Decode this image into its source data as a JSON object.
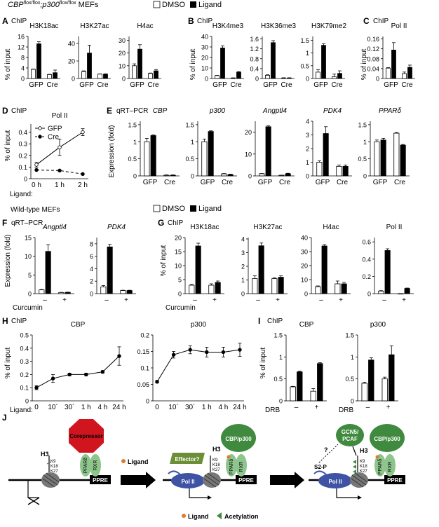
{
  "header": {
    "top_line_base": "CBP",
    "top_line_sup1": "flox/flox",
    "top_line_mid": ";p300",
    "top_line_sup2": "flox/flox",
    "top_line_end": " MEFs",
    "mid_line": "Wild-type MEFs"
  },
  "legend": {
    "dmso": "DMSO",
    "ligand": "Ligand"
  },
  "colors": {
    "dmso_fill": "#ffffff",
    "ligand_fill": "#000000",
    "red": "#d0151f",
    "green": "#3f8a3f",
    "light_green": "#8dc58d",
    "blue": "#3f53a5",
    "olive": "#6b8e37",
    "orange": "#e07b2e"
  },
  "panel_labels": {
    "A": "A",
    "B": "B",
    "C": "C",
    "D": "D",
    "E": "E",
    "F": "F",
    "G": "G",
    "H": "H",
    "I": "I",
    "J": "J"
  },
  "method_labels": {
    "chip": "ChIP",
    "qrt": "qRT–PCR"
  },
  "axis_labels": {
    "pct_input": "% of input",
    "expr": "Expression (fold)",
    "ligand": "Ligand:",
    "curcumin": "Curcumin",
    "drb": "DRB"
  },
  "tick_labels": {
    "gfp": "GFP",
    "cre": "Cre",
    "minus": "–",
    "plus": "+"
  },
  "chart_data": [
    {
      "id": "A1",
      "type": "bar",
      "title": "H3K18ac",
      "categories": [
        "GFP",
        "Cre"
      ],
      "series": [
        {
          "name": "DMSO",
          "values": [
            3.5,
            1.5
          ],
          "err": [
            0.1,
            0.1
          ]
        },
        {
          "name": "Ligand",
          "values": [
            13.2,
            2.2
          ],
          "err": [
            0.8,
            1.0
          ]
        }
      ],
      "yticks": [
        0,
        4,
        8,
        12,
        16
      ],
      "ylim": [
        0,
        16
      ]
    },
    {
      "id": "A2",
      "type": "bar",
      "title": "H3K27ac",
      "categories": [
        "GFP",
        "Cre"
      ],
      "series": [
        {
          "name": "DMSO",
          "values": [
            8,
            5
          ],
          "err": [
            0.7,
            0.2
          ]
        },
        {
          "name": "Ligand",
          "values": [
            29,
            5
          ],
          "err": [
            9,
            0.3
          ]
        }
      ],
      "yticks": [
        0,
        20,
        40
      ],
      "ylim": [
        0,
        48
      ]
    },
    {
      "id": "A3",
      "type": "bar",
      "title": "H4ac",
      "categories": [
        "GFP",
        "Cre"
      ],
      "series": [
        {
          "name": "DMSO",
          "values": [
            10,
            4
          ],
          "err": [
            1.5,
            0.3
          ]
        },
        {
          "name": "Ligand",
          "values": [
            23,
            6
          ],
          "err": [
            3.5,
            1
          ]
        }
      ],
      "yticks": [
        0,
        10,
        20,
        30
      ],
      "ylim": [
        0,
        33
      ]
    },
    {
      "id": "B1",
      "type": "bar",
      "title": "H3K4me3",
      "categories": [
        "GFP",
        "Cre"
      ],
      "series": [
        {
          "name": "DMSO",
          "values": [
            2.8,
            0.5
          ],
          "err": [
            0.2,
            0.1
          ]
        },
        {
          "name": "Ligand",
          "values": [
            29,
            6
          ],
          "err": [
            2,
            0.5
          ]
        }
      ],
      "yticks": [
        0,
        10,
        20,
        30,
        40
      ],
      "ylim": [
        0,
        40
      ]
    },
    {
      "id": "B2",
      "type": "bar",
      "title": "H3K36me3",
      "categories": [
        "GFP",
        "Cre"
      ],
      "series": [
        {
          "name": "DMSO",
          "values": [
            0.13,
            0.02
          ],
          "err": [
            0.02,
            0.01
          ]
        },
        {
          "name": "Ligand",
          "values": [
            1.45,
            0.02
          ],
          "err": [
            0.08,
            0.01
          ]
        }
      ],
      "yticks": [
        0,
        0.4,
        0.8,
        1.2,
        1.6
      ],
      "ylim": [
        0,
        1.7
      ]
    },
    {
      "id": "B3",
      "type": "bar",
      "title": "H3K79me2",
      "categories": [
        "GFP",
        "Cre"
      ],
      "series": [
        {
          "name": "DMSO",
          "values": [
            0.25,
            0.07
          ],
          "err": [
            0.1,
            0.1
          ]
        },
        {
          "name": "Ligand",
          "values": [
            1.3,
            0.2
          ],
          "err": [
            0.06,
            0.1
          ]
        }
      ],
      "yticks": [
        0,
        0.5,
        1,
        1.5
      ],
      "ylim": [
        0,
        1.65
      ]
    },
    {
      "id": "C",
      "type": "bar",
      "title": "Pol II",
      "categories": [
        "GFP",
        "Cre"
      ],
      "series": [
        {
          "name": "DMSO",
          "values": [
            0.042,
            0.02
          ],
          "err": [
            0.002,
            0.006
          ]
        },
        {
          "name": "Ligand",
          "values": [
            0.115,
            0.045
          ],
          "err": [
            0.03,
            0.009
          ]
        }
      ],
      "yticks": [
        0,
        0.04,
        0.08,
        0.12,
        0.16
      ],
      "ylim": [
        0,
        0.17
      ]
    },
    {
      "id": "D",
      "type": "line",
      "title": "Pol II",
      "x": [
        "0 h",
        "1 h",
        "2 h"
      ],
      "series": [
        {
          "name": "GFP",
          "values": [
            0.12,
            0.27,
            0.4
          ],
          "err": [
            0.02,
            0.07,
            0.03
          ]
        },
        {
          "name": "Cre",
          "values": [
            0.075,
            0.07,
            0.04
          ],
          "err": [
            0.005,
            0.005,
            0.005
          ]
        }
      ],
      "yticks": [
        0,
        0.1,
        0.2,
        0.3,
        0.4
      ],
      "ylim": [
        0,
        0.47
      ]
    },
    {
      "id": "E1",
      "type": "bar",
      "title": "CBP",
      "categories": [
        "GFP",
        "Cre"
      ],
      "series": [
        {
          "name": "DMSO",
          "values": [
            1.0,
            0.02
          ],
          "err": [
            0.1,
            0.01
          ]
        },
        {
          "name": "Ligand",
          "values": [
            1.18,
            0.02
          ],
          "err": [
            0.02,
            0.01
          ]
        }
      ],
      "yticks": [
        0,
        0.5,
        1,
        1.5
      ],
      "ylim": [
        0,
        1.6
      ]
    },
    {
      "id": "E2",
      "type": "bar",
      "title": "p300",
      "categories": [
        "GFP",
        "Cre"
      ],
      "series": [
        {
          "name": "DMSO",
          "values": [
            1.0,
            0.06
          ],
          "err": [
            0.08,
            0.01
          ]
        },
        {
          "name": "Ligand",
          "values": [
            1.3,
            0.04
          ],
          "err": [
            0.02,
            0.01
          ]
        }
      ],
      "yticks": [
        0,
        0.5,
        1,
        1.5
      ],
      "ylim": [
        0,
        1.6
      ]
    },
    {
      "id": "E3",
      "type": "bar",
      "title": "Angptl4",
      "categories": [
        "GFP",
        "Cre"
      ],
      "series": [
        {
          "name": "DMSO",
          "values": [
            1,
            0.3
          ],
          "err": [
            0.1,
            0.05
          ]
        },
        {
          "name": "Ligand",
          "values": [
            22.5,
            1
          ],
          "err": [
            0.4,
            0.2
          ]
        }
      ],
      "yticks": [
        0,
        10,
        20
      ],
      "ylim": [
        0,
        25
      ]
    },
    {
      "id": "E4",
      "type": "bar",
      "title": "PDK4",
      "categories": [
        "GFP",
        "Cre"
      ],
      "series": [
        {
          "name": "DMSO",
          "values": [
            1.0,
            0.7
          ],
          "err": [
            0.1,
            0.1
          ]
        },
        {
          "name": "Ligand",
          "values": [
            3.1,
            0.7
          ],
          "err": [
            0.5,
            0.1
          ]
        }
      ],
      "yticks": [
        0,
        1,
        2,
        3,
        4
      ],
      "ylim": [
        0,
        4
      ]
    },
    {
      "id": "E5",
      "type": "bar",
      "title": "PPARδ",
      "categories": [
        "GFP",
        "Cre"
      ],
      "series": [
        {
          "name": "DMSO",
          "values": [
            1.0,
            1.25
          ],
          "err": [
            0.05,
            0.02
          ]
        },
        {
          "name": "Ligand",
          "values": [
            1.05,
            0.9
          ],
          "err": [
            0.05,
            0.02
          ]
        }
      ],
      "yticks": [
        0,
        0.5,
        1,
        1.5
      ],
      "ylim": [
        0,
        1.6
      ]
    },
    {
      "id": "F1",
      "type": "bar",
      "title": "Angptl4",
      "categories": [
        "–",
        "+"
      ],
      "series": [
        {
          "name": "DMSO",
          "values": [
            1.0,
            0.3
          ],
          "err": [
            0.1,
            0.05
          ]
        },
        {
          "name": "Ligand",
          "values": [
            11.3,
            0.35
          ],
          "err": [
            1.8,
            0.05
          ]
        }
      ],
      "yticks": [
        0,
        5,
        10,
        15
      ],
      "ylim": [
        0,
        15
      ]
    },
    {
      "id": "F2",
      "type": "bar",
      "title": "PDK4",
      "categories": [
        "–",
        "+"
      ],
      "series": [
        {
          "name": "DMSO",
          "values": [
            1.1,
            0.5
          ],
          "err": [
            0.2,
            0.05
          ]
        },
        {
          "name": "Ligand",
          "values": [
            7.5,
            0.5
          ],
          "err": [
            0.4,
            0.05
          ]
        }
      ],
      "yticks": [
        0,
        2,
        4,
        6,
        8
      ],
      "ylim": [
        0,
        9
      ]
    },
    {
      "id": "G1",
      "type": "bar",
      "title": "H3K18ac",
      "categories": [
        "–",
        "+"
      ],
      "series": [
        {
          "name": "DMSO",
          "values": [
            3,
            3
          ],
          "err": [
            0.3,
            0.5
          ]
        },
        {
          "name": "Ligand",
          "values": [
            17,
            4
          ],
          "err": [
            1,
            0.5
          ]
        }
      ],
      "yticks": [
        0,
        5,
        10,
        15,
        20
      ],
      "ylim": [
        0,
        20
      ]
    },
    {
      "id": "G2",
      "type": "bar",
      "title": "H3K27ac",
      "categories": [
        "–",
        "+"
      ],
      "series": [
        {
          "name": "DMSO",
          "values": [
            1.1,
            1.1
          ],
          "err": [
            0.2,
            0.05
          ]
        },
        {
          "name": "Ligand",
          "values": [
            3.5,
            1.2
          ],
          "err": [
            0.2,
            0.1
          ]
        }
      ],
      "yticks": [
        0,
        1,
        2,
        3,
        4
      ],
      "ylim": [
        0,
        4.1
      ]
    },
    {
      "id": "G3",
      "type": "bar",
      "title": "H4ac",
      "categories": [
        "–",
        "+"
      ],
      "series": [
        {
          "name": "DMSO",
          "values": [
            5,
            7
          ],
          "err": [
            0.5,
            2
          ]
        },
        {
          "name": "Ligand",
          "values": [
            34,
            7
          ],
          "err": [
            1,
            1
          ]
        }
      ],
      "yticks": [
        0,
        10,
        20,
        30,
        40
      ],
      "ylim": [
        0,
        40
      ]
    },
    {
      "id": "G4",
      "type": "bar",
      "title": "Pol II",
      "categories": [
        "–",
        "+"
      ],
      "series": [
        {
          "name": "DMSO",
          "values": [
            0.03,
            0.0
          ],
          "err": [
            0.005,
            0.0
          ]
        },
        {
          "name": "Ligand",
          "values": [
            0.5,
            0.06
          ],
          "err": [
            0.02,
            0.005
          ]
        }
      ],
      "yticks": [
        0,
        0.2,
        0.4,
        0.6
      ],
      "ylim": [
        0,
        0.65
      ]
    },
    {
      "id": "H1",
      "type": "line",
      "title": "CBP",
      "x": [
        "0",
        "10´",
        "30´",
        "1 h",
        "4 h",
        "24 h"
      ],
      "series": [
        {
          "name": "CBP",
          "values": [
            0.1,
            0.17,
            0.2,
            0.2,
            0.22,
            0.34
          ],
          "err": [
            0.015,
            0.03,
            0.01,
            0.01,
            0.01,
            0.07
          ]
        }
      ],
      "yticks": [
        0,
        0.1,
        0.2,
        0.3,
        0.4,
        0.5
      ],
      "ylim": [
        0,
        0.5
      ]
    },
    {
      "id": "H2",
      "type": "line",
      "title": "p300",
      "x": [
        "0",
        "10´",
        "30´",
        "1 h",
        "4 h",
        "24 h"
      ],
      "series": [
        {
          "name": "p300",
          "values": [
            0.058,
            0.14,
            0.155,
            0.148,
            0.148,
            0.155
          ],
          "err": [
            0.004,
            0.01,
            0.012,
            0.015,
            0.015,
            0.02
          ]
        }
      ],
      "yticks": [
        0,
        0.05,
        0.1,
        0.15,
        0.2
      ],
      "ylim": [
        0,
        0.2
      ]
    },
    {
      "id": "I1",
      "type": "bar",
      "title": "CBP",
      "categories": [
        "–",
        "+"
      ],
      "series": [
        {
          "name": "DMSO",
          "values": [
            0.32,
            0.22
          ],
          "err": [
            0.01,
            0.06
          ]
        },
        {
          "name": "Ligand",
          "values": [
            0.66,
            0.85
          ],
          "err": [
            0.02,
            0.02
          ]
        }
      ],
      "yticks": [
        0,
        0.5,
        1,
        1.5
      ],
      "ylim": [
        0,
        1.5
      ]
    },
    {
      "id": "I2",
      "type": "bar",
      "title": "p300",
      "categories": [
        "–",
        "+"
      ],
      "series": [
        {
          "name": "DMSO",
          "values": [
            0.4,
            0.5
          ],
          "err": [
            0.02,
            0.04
          ]
        },
        {
          "name": "Ligand",
          "values": [
            0.93,
            1.05
          ],
          "err": [
            0.05,
            0.2
          ]
        }
      ],
      "yticks": [
        0,
        0.5,
        1,
        1.5
      ],
      "ylim": [
        0,
        1.5
      ]
    }
  ],
  "x_sets": {
    "d": [
      "0 h",
      "1 h",
      "2 h"
    ],
    "h": [
      "0",
      "10´",
      "30´",
      "1 h",
      "4 h",
      "24 h"
    ]
  },
  "diagram": {
    "corepressor": "Corepressor",
    "h3": "H3",
    "k9": "K9",
    "k18": "K18",
    "k27": "K27",
    "ppard": "PPARδ",
    "rxr": "RXR",
    "ppre": "PPRE",
    "ligand": "Ligand",
    "effector": "Effector?",
    "cbp_p300": "CBP/p300",
    "pol2": "Pol II",
    "gcn5": "GCN5/",
    "pcaf": "PCAF",
    "s2p": "S2-P",
    "question": "?",
    "legend_ligand": "Ligand",
    "legend_acetylation": "Acetylation"
  }
}
